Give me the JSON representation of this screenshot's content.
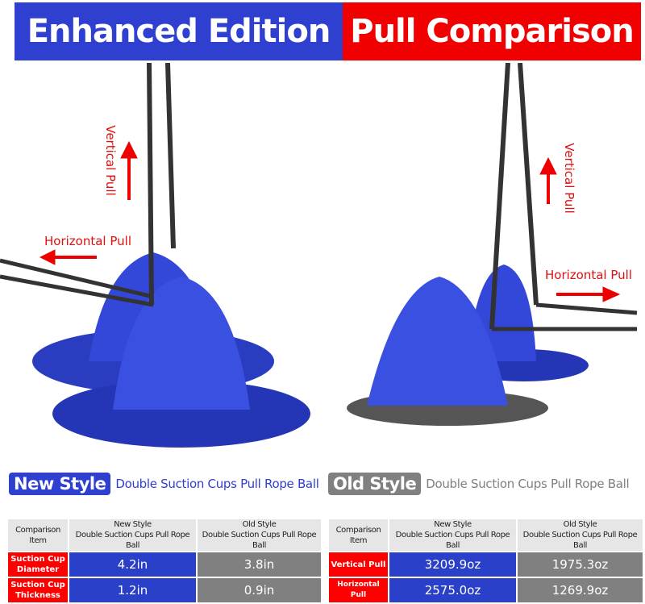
{
  "banner": {
    "left": "Enhanced Edition",
    "right": "Pull Comparison",
    "left_color": "#2f3fd0",
    "right_color": "#f00000"
  },
  "annotations": {
    "left_vertical": "Vertical Pull",
    "left_horizontal": "Horizontal Pull",
    "right_vertical": "Vertical Pull",
    "right_horizontal": "Horizontal Pull"
  },
  "new_style": {
    "tag": "New Style",
    "text": "Double Suction Cups Pull Rope Ball"
  },
  "old_style": {
    "tag": "Old Style",
    "text": "Double Suction Cups Pull Rope Ball"
  },
  "table_left": {
    "headers": [
      {
        "l1": "Comparison",
        "l2": "Item"
      },
      {
        "l1": "New Style",
        "l2": "Double Suction Cups Pull Rope Ball"
      },
      {
        "l1": "Old Style",
        "l2": "Double Suction Cups Pull Rope Ball"
      }
    ],
    "rows": [
      {
        "l1": "Suction Cup",
        "l2": "Diameter",
        "new": "4.2in",
        "old": "3.8in"
      },
      {
        "l1": "Suction Cup",
        "l2": "Thickness",
        "new": "1.2in",
        "old": "0.9in"
      }
    ]
  },
  "table_right": {
    "headers": [
      {
        "l1": "Comparison",
        "l2": "Item"
      },
      {
        "l1": "New Style",
        "l2": "Double Suction Cups Pull Rope Ball"
      },
      {
        "l1": "Old Style",
        "l2": "Double Suction Cups Pull Rope Ball"
      }
    ],
    "rows": [
      {
        "item": "Vertical Pull",
        "new": "3209.9oz",
        "old": "1975.3oz"
      },
      {
        "item": "Horizontal Pull",
        "new": "2575.0oz",
        "old": "1269.9oz"
      }
    ]
  }
}
